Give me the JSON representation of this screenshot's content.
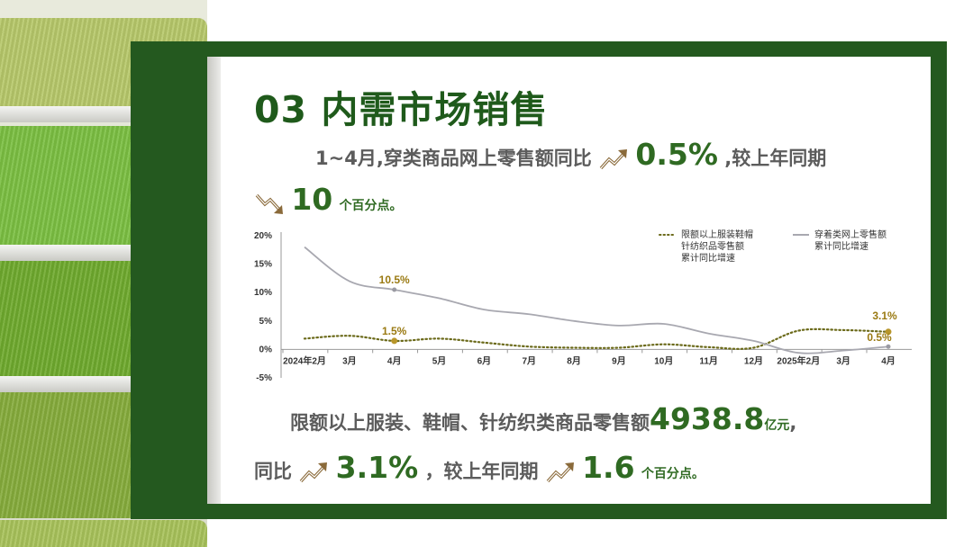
{
  "title": "03  内需市场销售",
  "line1": {
    "pre": "1~4月,穿类商品网上零售额同比",
    "value": "0.5%",
    "post": ",较上年同期"
  },
  "line2": {
    "value": "10",
    "post": "个百分点。"
  },
  "line3": {
    "pre": "限额以上服装、鞋帽、针纺织类商品零售额",
    "value": "4938.8",
    "unit": "亿元",
    "post": ","
  },
  "line4": {
    "pre": "同比",
    "value": "3.1%",
    "mid": "，较上年同期",
    "value2": "1.6",
    "post": "个百分点。"
  },
  "icons": {
    "up": "trend-up-arrow-icon",
    "down": "trend-down-arrow-icon"
  },
  "colors": {
    "frame": "#24591f",
    "accent": "#2f6a22",
    "series_dotted": "#6b6a1a",
    "series_gray": "#a8a8b0",
    "label": "#9a7a12"
  },
  "chart_data": {
    "type": "line",
    "categories": [
      "2024年2月",
      "3月",
      "4月",
      "5月",
      "6月",
      "7月",
      "8月",
      "9月",
      "10月",
      "11月",
      "12月",
      "2025年2月",
      "3月",
      "4月"
    ],
    "ylim": [
      -5,
      20
    ],
    "yticks": [
      "20%",
      "15%",
      "10%",
      "5%",
      "0%",
      "-5%"
    ],
    "series": [
      {
        "name": "限额以上服装鞋帽针纺织品零售额累计同比增速",
        "legend_lines": [
          "限额以上服装鞋帽",
          "针纺织品零售额",
          "累计同比增速"
        ],
        "style": "dotted",
        "values": [
          1.9,
          2.4,
          1.5,
          1.9,
          1.2,
          0.5,
          0.3,
          0.3,
          0.9,
          0.4,
          0.3,
          3.3,
          3.4,
          3.1
        ]
      },
      {
        "name": "穿着类网上零售额累计同比增速",
        "legend_lines": [
          "穿着类网上零售额",
          "累计同比增速"
        ],
        "style": "solid",
        "values": [
          18,
          12,
          10.5,
          9,
          7,
          6.2,
          5,
          4.2,
          4.5,
          2.8,
          1.5,
          -0.6,
          -0.2,
          0.5
        ]
      }
    ],
    "annotations": [
      {
        "series": 1,
        "index": 2,
        "text": "10.5%"
      },
      {
        "series": 0,
        "index": 2,
        "text": "1.5%"
      },
      {
        "series": 0,
        "index": 13,
        "text": "3.1%"
      },
      {
        "series": 1,
        "index": 13,
        "text": "0.5%"
      }
    ]
  }
}
